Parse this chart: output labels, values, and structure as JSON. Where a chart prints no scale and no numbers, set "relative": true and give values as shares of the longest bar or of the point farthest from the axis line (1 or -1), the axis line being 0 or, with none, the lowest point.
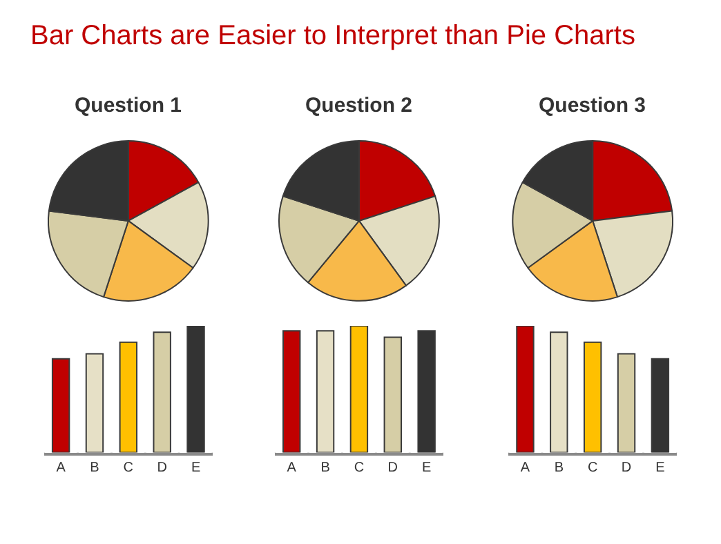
{
  "chart_data": [
    {
      "type": "other",
      "title": "Bar Charts are Easier to Interpret than Pie Charts"
    },
    {
      "type": "pie",
      "title": "Question 1",
      "categories": [
        null,
        null,
        null,
        null,
        null
      ],
      "values": [
        17,
        18,
        20,
        22,
        23
      ],
      "colors": [
        "#c00000",
        "#e3dec2",
        "#f8b94a",
        "#d6cea6",
        "#333333"
      ]
    },
    {
      "type": "pie",
      "title": "Question 2",
      "categories": [
        null,
        null,
        null,
        null,
        null
      ],
      "values": [
        20,
        20,
        21,
        19,
        20
      ],
      "colors": [
        "#c00000",
        "#e3dec2",
        "#f8b94a",
        "#d6cea6",
        "#333333"
      ]
    },
    {
      "type": "pie",
      "title": "Question 3",
      "categories": [
        null,
        null,
        null,
        null,
        null
      ],
      "values": [
        23,
        22,
        20,
        18,
        17
      ],
      "colors": [
        "#c00000",
        "#e3dec2",
        "#f8b94a",
        "#d6cea6",
        "#333333"
      ]
    },
    {
      "type": "bar",
      "relative": true,
      "categories": [
        "A",
        "B",
        "C",
        "D",
        "E"
      ],
      "values": [
        0.74,
        0.78,
        0.87,
        0.95,
        1
      ],
      "colors": [
        "#c00000",
        "#e6e0c6",
        "#ffc000",
        "#d6cea6",
        "#333333"
      ]
    },
    {
      "type": "bar",
      "relative": true,
      "categories": [
        "A",
        "B",
        "C",
        "D",
        "E"
      ],
      "values": [
        0.96,
        0.96,
        1,
        0.91,
        0.96
      ],
      "colors": [
        "#c00000",
        "#e6e0c6",
        "#ffc000",
        "#d6cea6",
        "#333333"
      ]
    },
    {
      "type": "bar",
      "relative": true,
      "categories": [
        "A",
        "B",
        "C",
        "D",
        "E"
      ],
      "values": [
        1,
        0.95,
        0.87,
        0.78,
        0.74
      ],
      "colors": [
        "#c00000",
        "#e6e0c6",
        "#ffc000",
        "#d6cea6",
        "#333333"
      ]
    }
  ]
}
